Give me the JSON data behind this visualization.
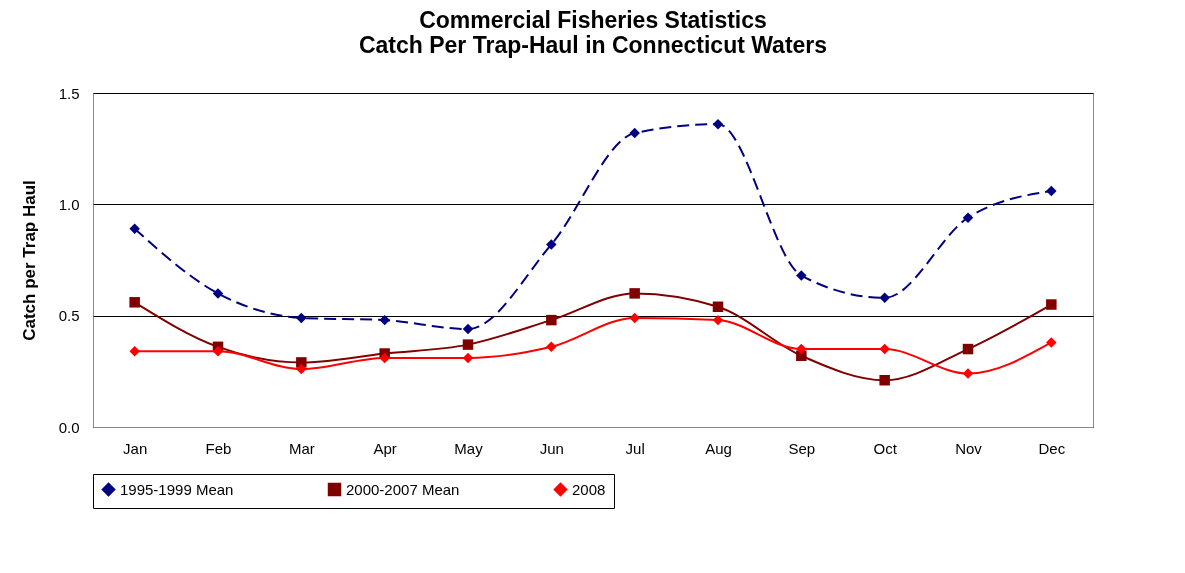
{
  "chart_data": {
    "type": "line",
    "title": "Commercial Fisheries Statistics\nCatch Per Trap-Haul in Connecticut Waters",
    "ylabel": "Catch  per Trap Haul",
    "categories": [
      "Jan",
      "Feb",
      "Mar",
      "Apr",
      "May",
      "Jun",
      "Jul",
      "Aug",
      "Sep",
      "Oct",
      "Nov",
      "Dec"
    ],
    "series": [
      {
        "name": "1995-1999 Mean",
        "color": "#000080",
        "marker": "diamond",
        "line_style": "dashed",
        "values": [
          0.89,
          0.6,
          0.49,
          0.48,
          0.44,
          0.82,
          1.32,
          1.36,
          0.68,
          0.58,
          0.94,
          1.06
        ]
      },
      {
        "name": "2000-2007 Mean",
        "color": "#800000",
        "marker": "square",
        "line_style": "solid",
        "values": [
          0.56,
          0.36,
          0.29,
          0.33,
          0.37,
          0.48,
          0.6,
          0.54,
          0.32,
          0.21,
          0.35,
          0.55
        ]
      },
      {
        "name": "2008",
        "color": "#ff0000",
        "marker": "diamond",
        "line_style": "solid",
        "values": [
          0.34,
          0.34,
          0.26,
          0.31,
          0.31,
          0.36,
          0.49,
          0.48,
          0.35,
          0.35,
          0.24,
          0.38
        ]
      }
    ],
    "ylim": [
      0,
      1.5
    ],
    "yticks": [
      {
        "value": 0,
        "label": "0.0"
      },
      {
        "value": 0.5,
        "label": "0.5"
      },
      {
        "value": 1,
        "label": "1.0"
      },
      {
        "value": 1.5,
        "label": "1.5"
      }
    ],
    "grid": "y",
    "legend": "bottom"
  }
}
